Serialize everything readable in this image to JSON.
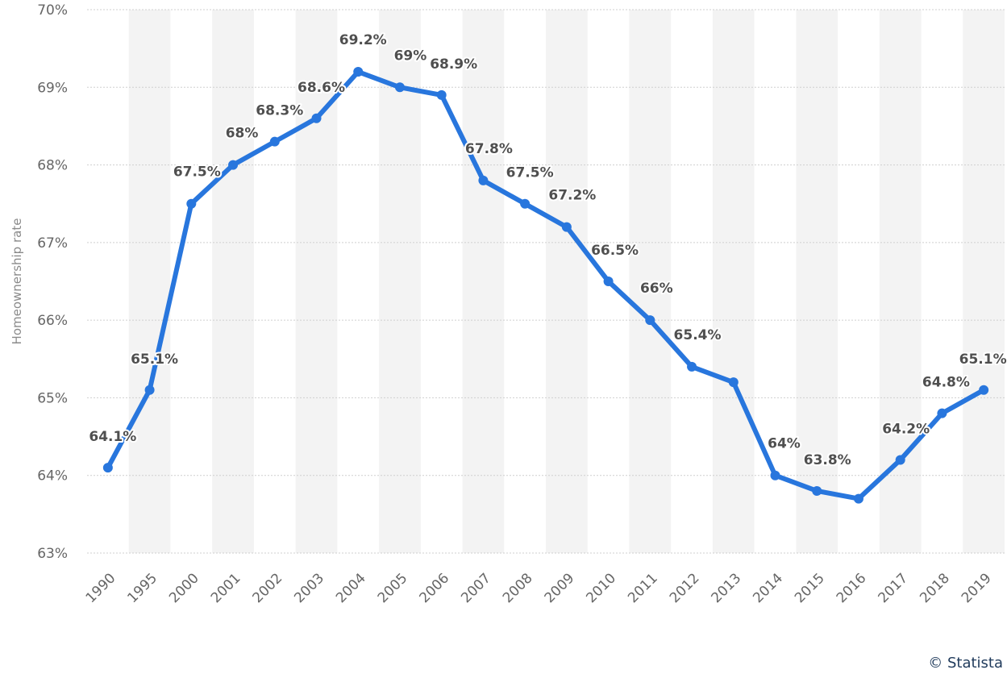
{
  "chart_data": {
    "type": "line",
    "title": "",
    "xlabel": "",
    "ylabel": "Homeownership rate",
    "ylim": [
      63,
      70
    ],
    "yticks": [
      63,
      64,
      65,
      66,
      67,
      68,
      69,
      70
    ],
    "ytick_labels": [
      "63%",
      "64%",
      "65%",
      "66%",
      "67%",
      "68%",
      "69%",
      "70%"
    ],
    "categories": [
      "1990",
      "1995",
      "2000",
      "2001",
      "2002",
      "2003",
      "2004",
      "2005",
      "2006",
      "2007",
      "2008",
      "2009",
      "2010",
      "2011",
      "2012",
      "2013",
      "2014",
      "2015",
      "2016",
      "2017",
      "2018",
      "2019"
    ],
    "series": [
      {
        "name": "Homeownership rate",
        "values": [
          64.1,
          65.1,
          67.5,
          68.0,
          68.3,
          68.6,
          69.2,
          69.0,
          68.9,
          67.8,
          67.5,
          67.2,
          66.5,
          66.0,
          65.4,
          65.2,
          64.0,
          63.8,
          63.7,
          64.2,
          64.8,
          65.1
        ],
        "labels": [
          "64.1%",
          "65.1%",
          "67.5%",
          "68%",
          "68.3%",
          "68.6%",
          "69.2%",
          "69%",
          "68.9%",
          "67.8%",
          "67.5%",
          "67.2%",
          "66.5%",
          "66%",
          "65.4%",
          "",
          "64%",
          "63.8%",
          "",
          "64.2%",
          "64.8%",
          "65.1%"
        ],
        "color": "#2876dd"
      }
    ],
    "grid": true,
    "legend": "none"
  },
  "copyright": "© Statista"
}
